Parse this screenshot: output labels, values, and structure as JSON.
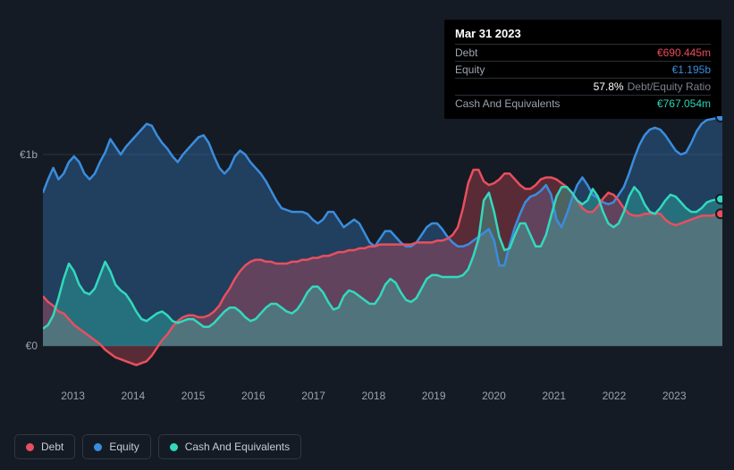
{
  "tooltip": {
    "date": "Mar 31 2023",
    "rows": {
      "debt": {
        "label": "Debt",
        "value": "€690.445m"
      },
      "equity": {
        "label": "Equity",
        "value": "€1.195b"
      },
      "ratio": {
        "pct": "57.8%",
        "txt": "Debt/Equity Ratio"
      },
      "cash": {
        "label": "Cash And Equivalents",
        "value": "€767.054m"
      }
    }
  },
  "chart": {
    "type": "area-line",
    "background_color": "#151b24",
    "grid_color": "#2a3340",
    "label_color": "#9aa3b0",
    "label_fontsize": 12,
    "ylim": [
      -200,
      1200
    ],
    "zero_y": 1000,
    "y_ticks": [
      {
        "v": 0,
        "label": "€0"
      },
      {
        "v": 1000,
        "label": "€1b"
      }
    ],
    "x_ticks": [
      "2013",
      "2014",
      "2015",
      "2016",
      "2017",
      "2018",
      "2019",
      "2020",
      "2021",
      "2022",
      "2023"
    ],
    "series": {
      "debt": {
        "label": "Debt",
        "color": "#e94f5e",
        "data": [
          260,
          230,
          210,
          180,
          170,
          140,
          110,
          90,
          70,
          50,
          30,
          10,
          -20,
          -40,
          -60,
          -70,
          -80,
          -90,
          -100,
          -90,
          -80,
          -50,
          -10,
          30,
          60,
          100,
          130,
          150,
          160,
          160,
          150,
          150,
          160,
          180,
          210,
          260,
          300,
          350,
          390,
          420,
          440,
          450,
          450,
          440,
          440,
          430,
          430,
          430,
          440,
          440,
          450,
          450,
          460,
          460,
          470,
          470,
          480,
          490,
          490,
          500,
          500,
          510,
          510,
          520,
          520,
          530,
          530,
          530,
          530,
          530,
          530,
          530,
          540,
          540,
          540,
          540,
          550,
          550,
          560,
          580,
          620,
          720,
          850,
          920,
          920,
          860,
          840,
          850,
          870,
          900,
          900,
          870,
          840,
          820,
          820,
          840,
          870,
          880,
          880,
          870,
          850,
          830,
          800,
          760,
          720,
          700,
          700,
          730,
          770,
          800,
          790,
          760,
          720,
          690,
          680,
          680,
          690,
          690,
          690,
          690,
          660,
          640,
          630,
          640,
          650,
          660,
          670,
          680,
          680,
          680,
          690,
          690
        ]
      },
      "equity": {
        "label": "Equity",
        "color": "#3a8dde",
        "data": [
          800,
          870,
          930,
          870,
          900,
          960,
          990,
          960,
          900,
          870,
          900,
          960,
          1010,
          1080,
          1040,
          1000,
          1040,
          1070,
          1100,
          1130,
          1160,
          1150,
          1100,
          1060,
          1030,
          990,
          960,
          1000,
          1030,
          1060,
          1090,
          1100,
          1060,
          990,
          930,
          900,
          930,
          990,
          1020,
          1000,
          960,
          930,
          900,
          860,
          810,
          760,
          720,
          710,
          700,
          700,
          700,
          690,
          660,
          640,
          660,
          700,
          700,
          660,
          620,
          640,
          660,
          640,
          590,
          540,
          520,
          560,
          600,
          600,
          570,
          540,
          520,
          520,
          540,
          580,
          620,
          640,
          640,
          610,
          570,
          540,
          520,
          520,
          530,
          550,
          570,
          590,
          610,
          550,
          420,
          420,
          530,
          620,
          690,
          750,
          780,
          790,
          810,
          840,
          790,
          660,
          620,
          690,
          770,
          840,
          880,
          840,
          790,
          770,
          750,
          740,
          750,
          790,
          830,
          900,
          980,
          1050,
          1100,
          1130,
          1140,
          1130,
          1100,
          1060,
          1020,
          1000,
          1010,
          1060,
          1120,
          1160,
          1180,
          1185,
          1190,
          1195
        ]
      },
      "cash": {
        "label": "Cash And Equivalents",
        "color": "#33d9bd",
        "data": [
          90,
          110,
          160,
          250,
          350,
          430,
          390,
          320,
          280,
          270,
          300,
          370,
          440,
          390,
          320,
          290,
          270,
          230,
          180,
          140,
          130,
          150,
          170,
          180,
          160,
          130,
          120,
          130,
          140,
          140,
          120,
          100,
          100,
          120,
          150,
          180,
          200,
          200,
          180,
          150,
          130,
          140,
          170,
          200,
          220,
          220,
          200,
          180,
          170,
          190,
          230,
          280,
          310,
          310,
          280,
          230,
          190,
          200,
          260,
          290,
          280,
          260,
          240,
          220,
          220,
          260,
          320,
          350,
          330,
          280,
          240,
          230,
          250,
          300,
          350,
          370,
          370,
          360,
          360,
          360,
          360,
          370,
          400,
          470,
          560,
          760,
          800,
          700,
          570,
          500,
          510,
          580,
          640,
          640,
          580,
          520,
          520,
          580,
          680,
          780,
          830,
          830,
          800,
          760,
          740,
          760,
          820,
          780,
          700,
          640,
          620,
          640,
          700,
          780,
          830,
          800,
          740,
          700,
          690,
          720,
          760,
          790,
          780,
          750,
          720,
          700,
          700,
          720,
          750,
          760,
          765,
          767
        ]
      }
    }
  },
  "legend": {
    "border_color": "#2e3744",
    "text_color": "#c6ccd6",
    "items": [
      {
        "key": "debt",
        "label": "Debt"
      },
      {
        "key": "equity",
        "label": "Equity"
      },
      {
        "key": "cash",
        "label": "Cash And Equivalents"
      }
    ]
  }
}
